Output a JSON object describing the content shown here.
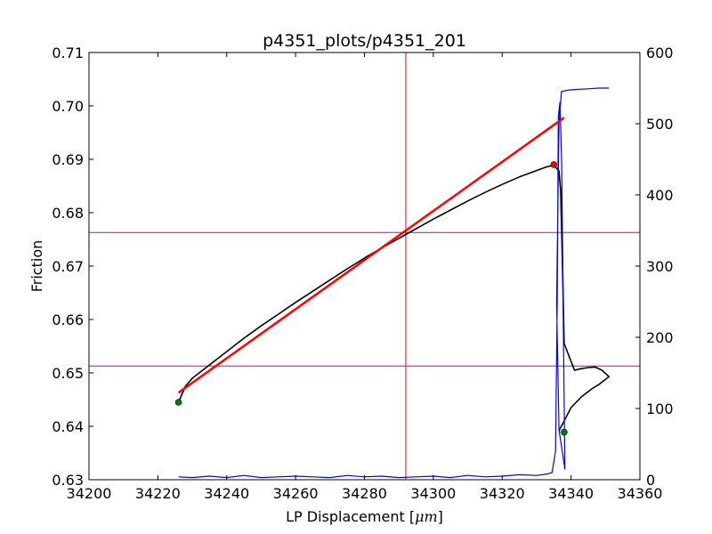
{
  "chart_data": {
    "type": "line",
    "title": "p4351_plots/p4351_201",
    "xlabel": "LP Displacement [",
    "xlabel_unit": "μm",
    "xlabel_close": "]",
    "ylabel": "Friction",
    "xlim": [
      34200,
      34360
    ],
    "ylim": [
      0.63,
      0.71
    ],
    "y2lim": [
      0,
      600
    ],
    "x_ticks": [
      "34200",
      "34220",
      "34240",
      "34260",
      "34280",
      "34300",
      "34320",
      "34340",
      "34360"
    ],
    "y_ticks": [
      "0.63",
      "0.64",
      "0.65",
      "0.66",
      "0.67",
      "0.68",
      "0.69",
      "0.70",
      "0.71"
    ],
    "y2_ticks": [
      "0",
      "100",
      "200",
      "300",
      "400",
      "500",
      "600"
    ],
    "grid": false,
    "colors": {
      "friction": "#000000",
      "secondary": "#0000ff",
      "fit": "#ff0000",
      "vline": "#ff0000",
      "hlines": "#bf00bf",
      "start_marker": "#008000",
      "peak_marker": "#ff0000"
    },
    "series": [
      {
        "axis": "left",
        "x": [
          34226,
          34228,
          34230,
          34235,
          34240,
          34245,
          34250,
          34255,
          34260,
          34265,
          34270,
          34275,
          34280,
          34285,
          34290,
          34295,
          34300,
          34305,
          34310,
          34315,
          34320,
          34325,
          34330,
          34333,
          34335,
          34336.5,
          34337,
          34337.5,
          34338,
          34341,
          34343,
          34345,
          34347,
          34349,
          34351,
          34348,
          34346,
          34343,
          34340,
          34338,
          34336.5
        ],
        "y": [
          0.6445,
          0.6475,
          0.649,
          0.6515,
          0.654,
          0.6565,
          0.6588,
          0.661,
          0.6632,
          0.6653,
          0.6674,
          0.6695,
          0.6715,
          0.6734,
          0.6752,
          0.677,
          0.6788,
          0.6805,
          0.6822,
          0.6838,
          0.6853,
          0.6867,
          0.6879,
          0.6886,
          0.6889,
          0.6878,
          0.684,
          0.67,
          0.6555,
          0.6505,
          0.6508,
          0.651,
          0.6511,
          0.6505,
          0.6493,
          0.6478,
          0.647,
          0.6455,
          0.6435,
          0.641,
          0.6392
        ]
      },
      {
        "axis": "right",
        "x": [
          34226,
          34230,
          34235,
          34240,
          34245,
          34250,
          34255,
          34260,
          34265,
          34270,
          34275,
          34280,
          34285,
          34290,
          34295,
          34300,
          34305,
          34310,
          34315,
          34320,
          34325,
          34330,
          34333,
          34334.5,
          34335.5,
          34336,
          34336.3,
          34336.8,
          34337.3,
          34337.8,
          34338.2,
          34336.5,
          34335.8,
          34336.5,
          34337.2,
          34338,
          34339,
          34341,
          34345,
          34348,
          34351
        ],
        "y": [
          4,
          3,
          5,
          3,
          6,
          3,
          4,
          5,
          4,
          3,
          6,
          4,
          5,
          3,
          4,
          5,
          3,
          6,
          4,
          5,
          7,
          6,
          8,
          10,
          40,
          250,
          510,
          530,
          440,
          200,
          15,
          70,
          250,
          500,
          545,
          546,
          547,
          548,
          549,
          550,
          550
        ]
      }
    ],
    "fit_line": {
      "x": [
        34226,
        34338
      ],
      "y": [
        0.6463,
        0.6978
      ]
    },
    "vline_x": 34292,
    "hlines_y": [
      0.6763,
      0.6513
    ],
    "markers": [
      {
        "name": "start",
        "x": 34226,
        "y": 0.6445
      },
      {
        "name": "end",
        "x": 34338,
        "y": 0.6389
      },
      {
        "name": "peak",
        "x": 34335,
        "y": 0.689
      }
    ]
  }
}
